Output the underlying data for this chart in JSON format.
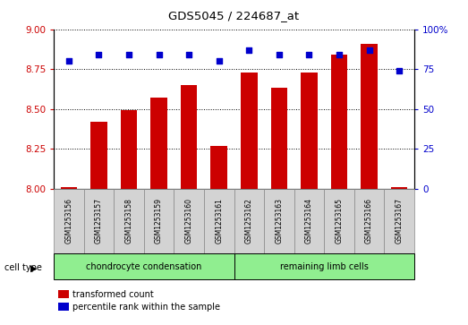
{
  "title": "GDS5045 / 224687_at",
  "samples": [
    "GSM1253156",
    "GSM1253157",
    "GSM1253158",
    "GSM1253159",
    "GSM1253160",
    "GSM1253161",
    "GSM1253162",
    "GSM1253163",
    "GSM1253164",
    "GSM1253165",
    "GSM1253166",
    "GSM1253167"
  ],
  "bar_values": [
    8.01,
    8.42,
    8.49,
    8.57,
    8.65,
    8.27,
    8.73,
    8.63,
    8.73,
    8.84,
    8.91,
    8.01
  ],
  "percentile_values": [
    80,
    84,
    84,
    84,
    84,
    80,
    87,
    84,
    84,
    84,
    87,
    74
  ],
  "bar_color": "#cc0000",
  "dot_color": "#0000cc",
  "ylim_left": [
    8,
    9
  ],
  "ylim_right": [
    0,
    100
  ],
  "yticks_left": [
    8,
    8.25,
    8.5,
    8.75,
    9
  ],
  "yticks_right": [
    0,
    25,
    50,
    75,
    100
  ],
  "groups": [
    {
      "label": "chondrocyte condensation",
      "start": 0,
      "end": 6
    },
    {
      "label": "remaining limb cells",
      "start": 6,
      "end": 12
    }
  ],
  "group_color": "#90ee90",
  "cell_type_label": "cell type",
  "legend_bar_label": "transformed count",
  "legend_dot_label": "percentile rank within the sample",
  "background_color": "#ffffff",
  "bar_baseline": 8.0,
  "xlabel_bg": "#d3d3d3"
}
